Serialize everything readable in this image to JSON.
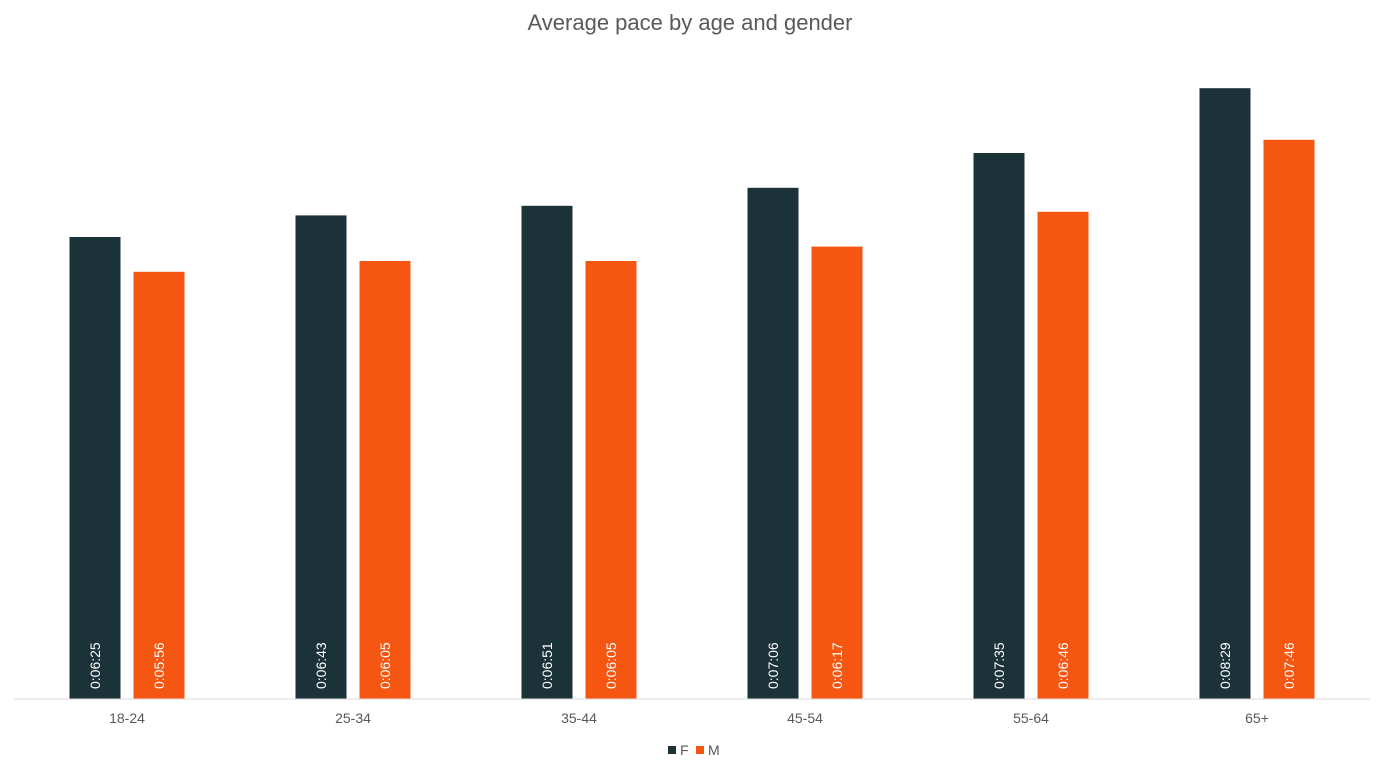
{
  "chart_data": {
    "type": "bar",
    "title": "Average pace by age and gender",
    "xlabel": "",
    "ylabel": "",
    "categories": [
      "18-24",
      "25-34",
      "35-44",
      "45-54",
      "55-64",
      "65+"
    ],
    "series": [
      {
        "name": "F",
        "color": "#1c3239",
        "values": [
          "0:06:25",
          "0:06:43",
          "0:06:51",
          "0:07:06",
          "0:07:35",
          "0:08:29"
        ]
      },
      {
        "name": "M",
        "color": "#f55611",
        "values": [
          "0:05:56",
          "0:06:05",
          "0:06:05",
          "0:06:17",
          "0:06:46",
          "0:07:46"
        ]
      }
    ],
    "ylim": [
      "0:00:00",
      "0:08:50"
    ],
    "grid": false,
    "legend": "bottom",
    "data_labels": "inside-base-rotated"
  }
}
